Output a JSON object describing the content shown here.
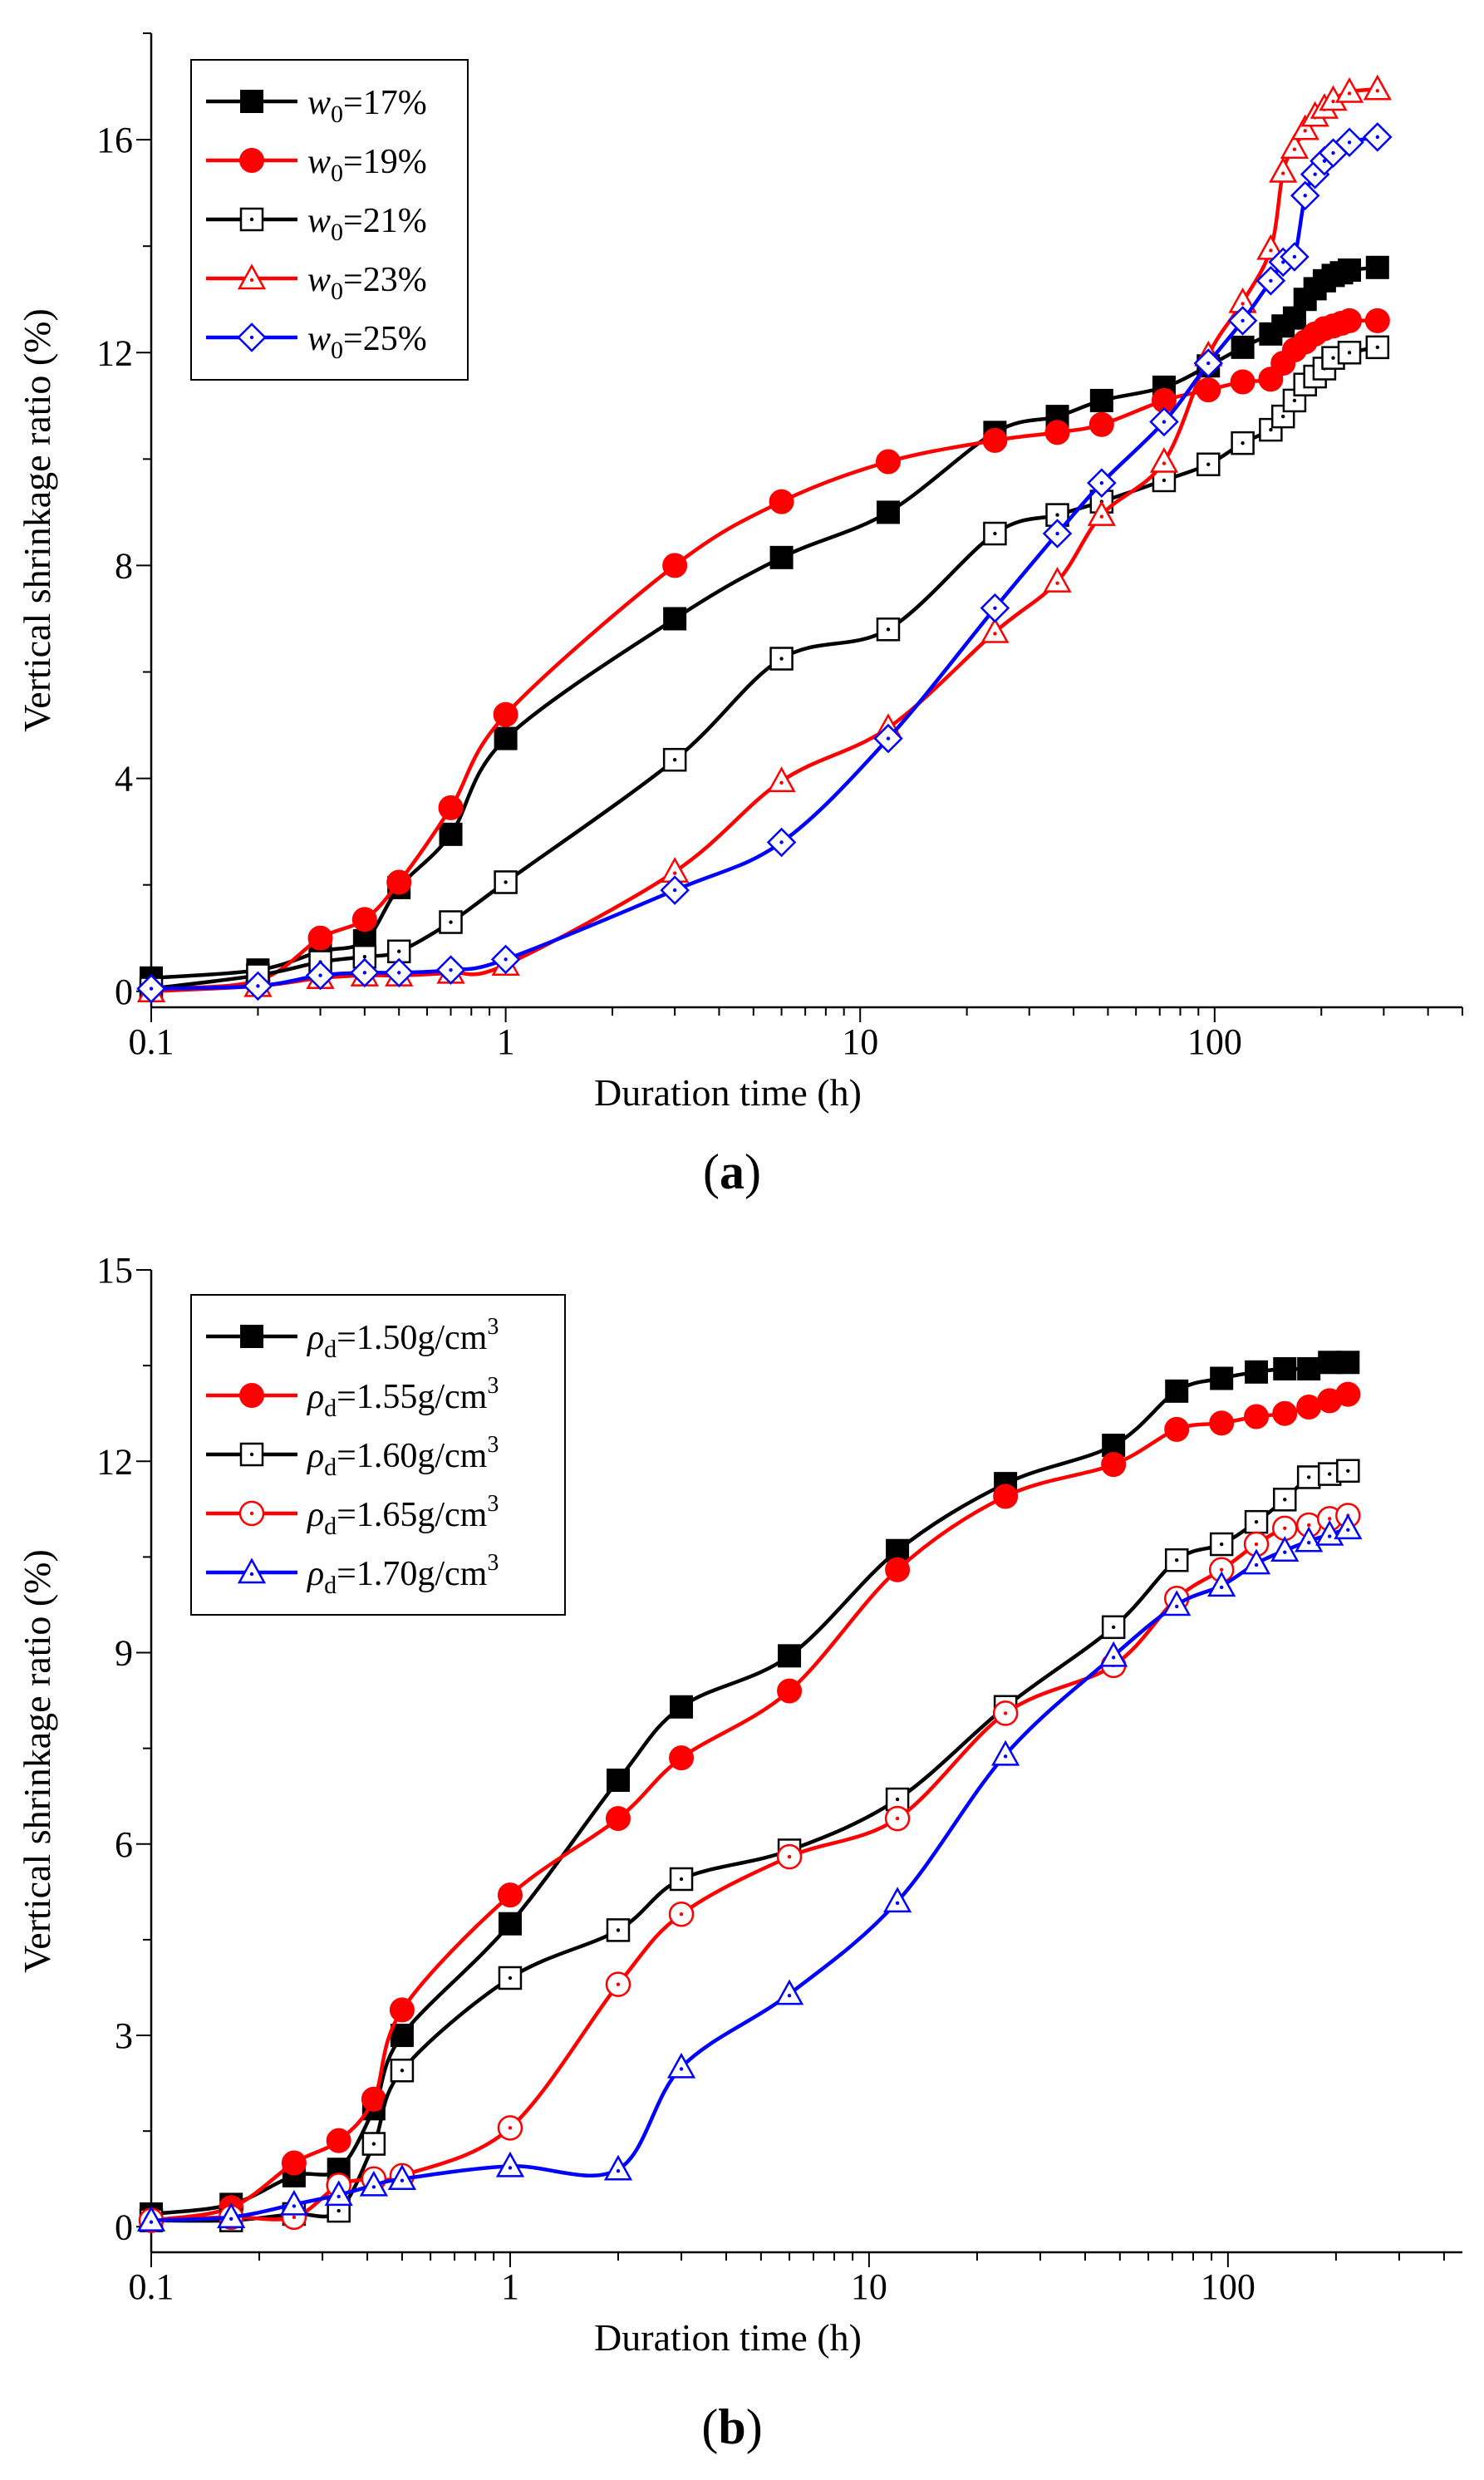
{
  "chart_data": [
    {
      "panel_label": "(a)",
      "type": "line",
      "x_scale": "log",
      "xlabel": "Duration time (h)",
      "ylabel": "Vertical shrinkage ratio (%)",
      "xlim": [
        0.1,
        500
      ],
      "ylim": [
        -0.3,
        18
      ],
      "x_ticks": [
        0.1,
        1,
        10,
        100
      ],
      "x_tick_labels": [
        "0.1",
        "1",
        "10",
        "100"
      ],
      "y_ticks": [
        0,
        4,
        8,
        12,
        16
      ],
      "y_tick_labels": [
        "0",
        "4",
        "8",
        "12",
        "16"
      ],
      "legend_position": "top-left",
      "series": [
        {
          "name_base": "w",
          "name_sub": "0",
          "name_rest": "=17%",
          "color": "#000000",
          "marker": "square-filled",
          "points": [
            [
              0.1,
              0.25
            ],
            [
              0.2,
              0.4
            ],
            [
              0.3,
              0.75
            ],
            [
              0.4,
              0.95
            ],
            [
              0.5,
              1.95
            ],
            [
              0.7,
              2.95
            ],
            [
              1,
              4.75
            ],
            [
              3,
              7.0
            ],
            [
              6,
              8.15
            ],
            [
              12,
              9.0
            ],
            [
              24,
              10.5
            ],
            [
              36,
              10.8
            ],
            [
              48,
              11.1
            ],
            [
              72,
              11.35
            ],
            [
              96,
              11.75
            ],
            [
              120,
              12.1
            ],
            [
              144,
              12.35
            ],
            [
              156,
              12.5
            ],
            [
              168,
              12.65
            ],
            [
              180,
              13.0
            ],
            [
              192,
              13.2
            ],
            [
              204,
              13.35
            ],
            [
              216,
              13.45
            ],
            [
              228,
              13.5
            ],
            [
              240,
              13.55
            ],
            [
              288,
              13.6
            ]
          ]
        },
        {
          "name_base": "w",
          "name_sub": "0",
          "name_rest": "=19%",
          "color": "#ff0000",
          "marker": "circle-filled",
          "points": [
            [
              0.1,
              0.05
            ],
            [
              0.2,
              0.2
            ],
            [
              0.3,
              1.0
            ],
            [
              0.4,
              1.35
            ],
            [
              0.5,
              2.05
            ],
            [
              0.7,
              3.45
            ],
            [
              1,
              5.2
            ],
            [
              3,
              8.0
            ],
            [
              6,
              9.2
            ],
            [
              12,
              9.95
            ],
            [
              24,
              10.35
            ],
            [
              36,
              10.5
            ],
            [
              48,
              10.65
            ],
            [
              72,
              11.1
            ],
            [
              96,
              11.3
            ],
            [
              120,
              11.45
            ],
            [
              144,
              11.5
            ],
            [
              156,
              11.8
            ],
            [
              168,
              12.05
            ],
            [
              180,
              12.2
            ],
            [
              192,
              12.35
            ],
            [
              204,
              12.45
            ],
            [
              216,
              12.5
            ],
            [
              228,
              12.55
            ],
            [
              240,
              12.6
            ],
            [
              288,
              12.6
            ]
          ]
        },
        {
          "name_base": "w",
          "name_sub": "0",
          "name_rest": "=21%",
          "color": "#000000",
          "marker": "square-open-dot",
          "points": [
            [
              0.1,
              0.05
            ],
            [
              0.2,
              0.3
            ],
            [
              0.3,
              0.55
            ],
            [
              0.4,
              0.65
            ],
            [
              0.5,
              0.75
            ],
            [
              0.7,
              1.3
            ],
            [
              1,
              2.05
            ],
            [
              3,
              4.35
            ],
            [
              6,
              6.25
            ],
            [
              12,
              6.8
            ],
            [
              24,
              8.6
            ],
            [
              36,
              8.95
            ],
            [
              48,
              9.2
            ],
            [
              72,
              9.6
            ],
            [
              96,
              9.9
            ],
            [
              120,
              10.3
            ],
            [
              144,
              10.55
            ],
            [
              156,
              10.8
            ],
            [
              168,
              11.1
            ],
            [
              180,
              11.4
            ],
            [
              192,
              11.55
            ],
            [
              204,
              11.7
            ],
            [
              216,
              11.9
            ],
            [
              240,
              12.0
            ],
            [
              288,
              12.1
            ]
          ]
        },
        {
          "name_base": "w",
          "name_sub": "0",
          "name_rest": "=23%",
          "color": "#ff0000",
          "marker": "triangle-open-dot",
          "points": [
            [
              0.1,
              0.0
            ],
            [
              0.2,
              0.1
            ],
            [
              0.3,
              0.25
            ],
            [
              0.4,
              0.3
            ],
            [
              0.5,
              0.3
            ],
            [
              0.7,
              0.35
            ],
            [
              1,
              0.5
            ],
            [
              3,
              2.25
            ],
            [
              6,
              3.95
            ],
            [
              12,
              4.95
            ],
            [
              24,
              6.75
            ],
            [
              36,
              7.7
            ],
            [
              48,
              8.95
            ],
            [
              72,
              9.95
            ],
            [
              96,
              11.95
            ],
            [
              120,
              12.95
            ],
            [
              144,
              13.95
            ],
            [
              156,
              15.4
            ],
            [
              168,
              15.85
            ],
            [
              180,
              16.2
            ],
            [
              192,
              16.45
            ],
            [
              204,
              16.6
            ],
            [
              216,
              16.75
            ],
            [
              240,
              16.9
            ],
            [
              288,
              16.95
            ]
          ]
        },
        {
          "name_base": "w",
          "name_sub": "0",
          "name_rest": "=25%",
          "color": "#0000ff",
          "marker": "diamond-open-dot",
          "points": [
            [
              0.1,
              0.05
            ],
            [
              0.2,
              0.1
            ],
            [
              0.3,
              0.3
            ],
            [
              0.4,
              0.35
            ],
            [
              0.5,
              0.35
            ],
            [
              0.7,
              0.4
            ],
            [
              1,
              0.6
            ],
            [
              3,
              1.9
            ],
            [
              6,
              2.8
            ],
            [
              12,
              4.75
            ],
            [
              24,
              7.2
            ],
            [
              36,
              8.6
            ],
            [
              48,
              9.55
            ],
            [
              72,
              10.7
            ],
            [
              96,
              11.8
            ],
            [
              120,
              12.6
            ],
            [
              144,
              13.35
            ],
            [
              156,
              13.7
            ],
            [
              168,
              13.8
            ],
            [
              180,
              14.95
            ],
            [
              192,
              15.35
            ],
            [
              204,
              15.6
            ],
            [
              216,
              15.75
            ],
            [
              240,
              15.95
            ],
            [
              288,
              16.05
            ]
          ]
        }
      ]
    },
    {
      "panel_label": "(b)",
      "type": "line",
      "x_scale": "log",
      "xlabel": "Duration time (h)",
      "ylabel": "Vertical shrinkage ratio (%)",
      "xlim": [
        0.1,
        450
      ],
      "ylim": [
        -0.4,
        15
      ],
      "x_ticks": [
        0.1,
        1,
        10,
        100
      ],
      "x_tick_labels": [
        "0.1",
        "1",
        "10",
        "100"
      ],
      "y_ticks": [
        0,
        3,
        6,
        9,
        12,
        15
      ],
      "y_tick_labels": [
        "0",
        "3",
        "6",
        "9",
        "12",
        "15"
      ],
      "legend_position": "top-left",
      "series": [
        {
          "name_base": "ρ",
          "name_sub": "d",
          "name_rest": "=1.50g/cm",
          "name_sup": "3",
          "color": "#000000",
          "marker": "square-filled",
          "points": [
            [
              0.1,
              0.2
            ],
            [
              0.167,
              0.35
            ],
            [
              0.25,
              0.8
            ],
            [
              0.333,
              0.9
            ],
            [
              0.417,
              1.85
            ],
            [
              0.5,
              3.0
            ],
            [
              1,
              4.75
            ],
            [
              2,
              7.0
            ],
            [
              3,
              8.15
            ],
            [
              6,
              8.95
            ],
            [
              12,
              10.6
            ],
            [
              24,
              11.65
            ],
            [
              48,
              12.25
            ],
            [
              72,
              13.1
            ],
            [
              96,
              13.3
            ],
            [
              120,
              13.4
            ],
            [
              144,
              13.45
            ],
            [
              168,
              13.45
            ],
            [
              192,
              13.55
            ],
            [
              216,
              13.55
            ]
          ]
        },
        {
          "name_base": "ρ",
          "name_sub": "d",
          "name_rest": "=1.55g/cm",
          "name_sup": "3",
          "color": "#ff0000",
          "marker": "circle-filled",
          "points": [
            [
              0.1,
              0.1
            ],
            [
              0.167,
              0.3
            ],
            [
              0.25,
              1.0
            ],
            [
              0.333,
              1.35
            ],
            [
              0.417,
              2.0
            ],
            [
              0.5,
              3.4
            ],
            [
              1,
              5.2
            ],
            [
              2,
              6.4
            ],
            [
              3,
              7.35
            ],
            [
              6,
              8.4
            ],
            [
              12,
              10.3
            ],
            [
              24,
              11.45
            ],
            [
              48,
              11.95
            ],
            [
              72,
              12.5
            ],
            [
              96,
              12.6
            ],
            [
              120,
              12.7
            ],
            [
              144,
              12.75
            ],
            [
              168,
              12.85
            ],
            [
              192,
              12.95
            ],
            [
              216,
              13.05
            ]
          ]
        },
        {
          "name_base": "ρ",
          "name_sub": "d",
          "name_rest": "=1.60g/cm",
          "name_sup": "3",
          "color": "#000000",
          "marker": "square-open-dot",
          "points": [
            [
              0.1,
              0.1
            ],
            [
              0.167,
              0.1
            ],
            [
              0.25,
              0.2
            ],
            [
              0.333,
              0.25
            ],
            [
              0.417,
              1.3
            ],
            [
              0.5,
              2.45
            ],
            [
              1,
              3.9
            ],
            [
              2,
              4.65
            ],
            [
              3,
              5.45
            ],
            [
              6,
              5.9
            ],
            [
              12,
              6.7
            ],
            [
              24,
              8.15
            ],
            [
              48,
              9.4
            ],
            [
              72,
              10.45
            ],
            [
              96,
              10.7
            ],
            [
              120,
              11.05
            ],
            [
              144,
              11.4
            ],
            [
              168,
              11.75
            ],
            [
              192,
              11.8
            ],
            [
              216,
              11.85
            ]
          ]
        },
        {
          "name_base": "ρ",
          "name_sub": "d",
          "name_rest": "=1.65g/cm",
          "name_sup": "3",
          "color": "#ff0000",
          "marker": "circle-open-dot",
          "points": [
            [
              0.1,
              0.1
            ],
            [
              0.167,
              0.15
            ],
            [
              0.25,
              0.15
            ],
            [
              0.333,
              0.65
            ],
            [
              0.417,
              0.75
            ],
            [
              0.5,
              0.8
            ],
            [
              1,
              1.55
            ],
            [
              2,
              3.8
            ],
            [
              3,
              4.9
            ],
            [
              6,
              5.8
            ],
            [
              12,
              6.4
            ],
            [
              24,
              8.05
            ],
            [
              48,
              8.8
            ],
            [
              72,
              9.85
            ],
            [
              96,
              10.3
            ],
            [
              120,
              10.7
            ],
            [
              144,
              10.95
            ],
            [
              168,
              11.0
            ],
            [
              192,
              11.1
            ],
            [
              216,
              11.15
            ]
          ]
        },
        {
          "name_base": "ρ",
          "name_sub": "d",
          "name_rest": "=1.70g/cm",
          "name_sup": "3",
          "color": "#0000ff",
          "marker": "triangle-open-dot",
          "points": [
            [
              0.1,
              0.1
            ],
            [
              0.167,
              0.15
            ],
            [
              0.25,
              0.35
            ],
            [
              0.333,
              0.5
            ],
            [
              0.417,
              0.65
            ],
            [
              0.5,
              0.75
            ],
            [
              1,
              0.95
            ],
            [
              2,
              0.9
            ],
            [
              3,
              2.5
            ],
            [
              6,
              3.65
            ],
            [
              12,
              5.1
            ],
            [
              24,
              7.4
            ],
            [
              48,
              8.95
            ],
            [
              72,
              9.75
            ],
            [
              96,
              10.05
            ],
            [
              120,
              10.4
            ],
            [
              144,
              10.6
            ],
            [
              168,
              10.75
            ],
            [
              192,
              10.85
            ],
            [
              216,
              10.95
            ]
          ]
        }
      ]
    }
  ]
}
